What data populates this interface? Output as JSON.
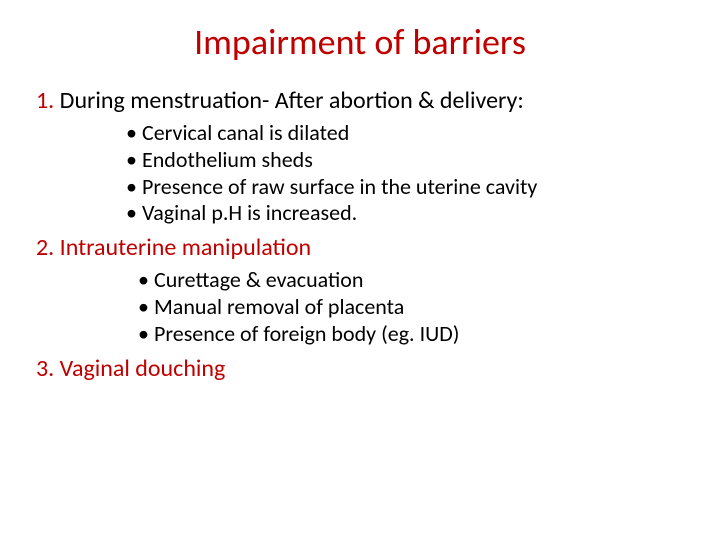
{
  "title": "Impairment of barriers",
  "title_color": "#c00000",
  "numbered": [
    {
      "num": "1.",
      "label": "During menstruation- After abortion & delivery:",
      "label_color": "#000000",
      "bullets": [
        "Cervical canal is dilated",
        "Endothelium sheds",
        "Presence of raw surface in the uterine cavity",
        "Vaginal p.H is increased."
      ]
    },
    {
      "num": "2.",
      "label": "Intrauterine manipulation",
      "label_color": "#c00000",
      "bullets": [
        "Curettage & evacuation",
        "Manual removal of placenta",
        "Presence of foreign body (eg. IUD)"
      ]
    },
    {
      "num": "3.",
      "label": "Vaginal douching",
      "label_color": "#c00000",
      "bullets": []
    }
  ],
  "fonts": {
    "title_size_pt": 36,
    "num_size_pt": 24,
    "bullet_size_pt": 22
  },
  "colors": {
    "accent": "#c00000",
    "text": "#000000",
    "background": "#ffffff"
  }
}
